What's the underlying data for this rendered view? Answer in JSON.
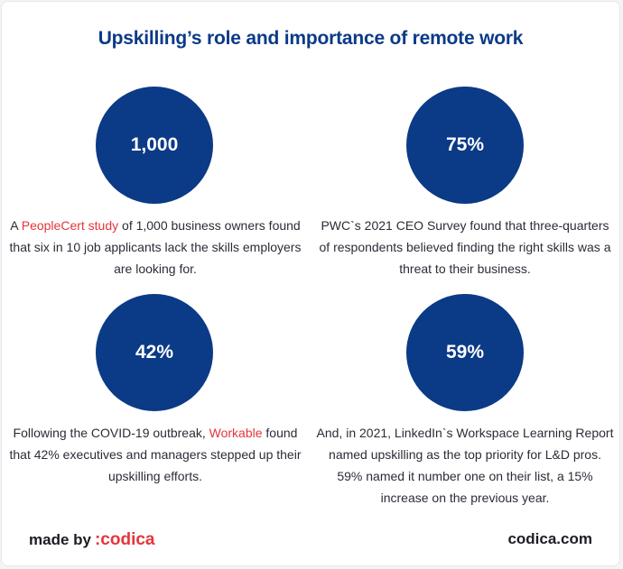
{
  "title": "Upskilling’s role and importance of remote work",
  "stats": [
    {
      "value": "1,000",
      "lead": "A ",
      "link": "PeopleCert study",
      "tail": " of 1,000 business owners found that six in 10 job applicants lack the skills employers are looking for."
    },
    {
      "value": "75%",
      "lead": "PWC`s 2021 CEO Survey found that three-quarters of respondents believed finding the right skills was a threat to their business.",
      "link": "",
      "tail": ""
    },
    {
      "value": "42%",
      "lead": "Following the COVID-19 outbreak, ",
      "link": "Workable",
      "tail": " found that 42% executives and managers stepped up their upskilling efforts."
    },
    {
      "value": "59%",
      "lead": "And, in 2021, LinkedIn`s Workspace Learning Report named upskilling as the top priority for L&D pros. 59% named it number one on their list, a 15% increase on the previous year.",
      "link": "",
      "tail": ""
    }
  ],
  "footer": {
    "made_by": "made by",
    "brand": ":codica",
    "site": "codica.com"
  },
  "colors": {
    "navy": "#0b3a87",
    "accent_red": "#e4353b",
    "text": "#2b2d36"
  }
}
